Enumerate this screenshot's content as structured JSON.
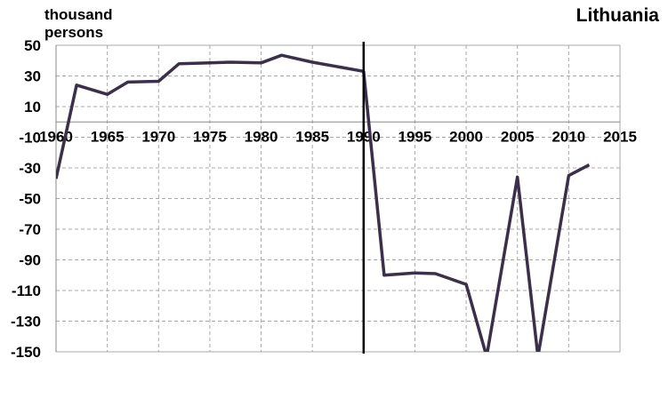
{
  "chart_data": {
    "type": "line",
    "title": "Lithuania",
    "ylabel_lines": [
      "thousand",
      "persons"
    ],
    "xlabel": "",
    "xlim": [
      1960,
      2015
    ],
    "ylim": [
      -150,
      50
    ],
    "x_ticks": [
      1960,
      1965,
      1970,
      1975,
      1980,
      1985,
      1990,
      1995,
      2000,
      2005,
      2010,
      2015
    ],
    "y_ticks": [
      50,
      30,
      10,
      -10,
      -30,
      -50,
      -70,
      -90,
      -110,
      -130,
      -150
    ],
    "grid": true,
    "vertical_marker_x": 1990,
    "line_color": "#3b2f4a",
    "series": [
      {
        "x": [
          1960,
          1962,
          1965,
          1967,
          1970,
          1972,
          1975,
          1977,
          1980,
          1982,
          1985,
          1990,
          1992,
          1995,
          1997,
          2000,
          2002,
          2005,
          2007,
          2010,
          2012
        ],
        "y": [
          -37,
          24,
          18,
          26,
          26.5,
          38,
          38.5,
          39,
          38.5,
          43.5,
          39,
          33,
          -100,
          -98.5,
          -99,
          -106,
          -153,
          -36,
          -153,
          -35,
          -28
        ]
      }
    ]
  }
}
